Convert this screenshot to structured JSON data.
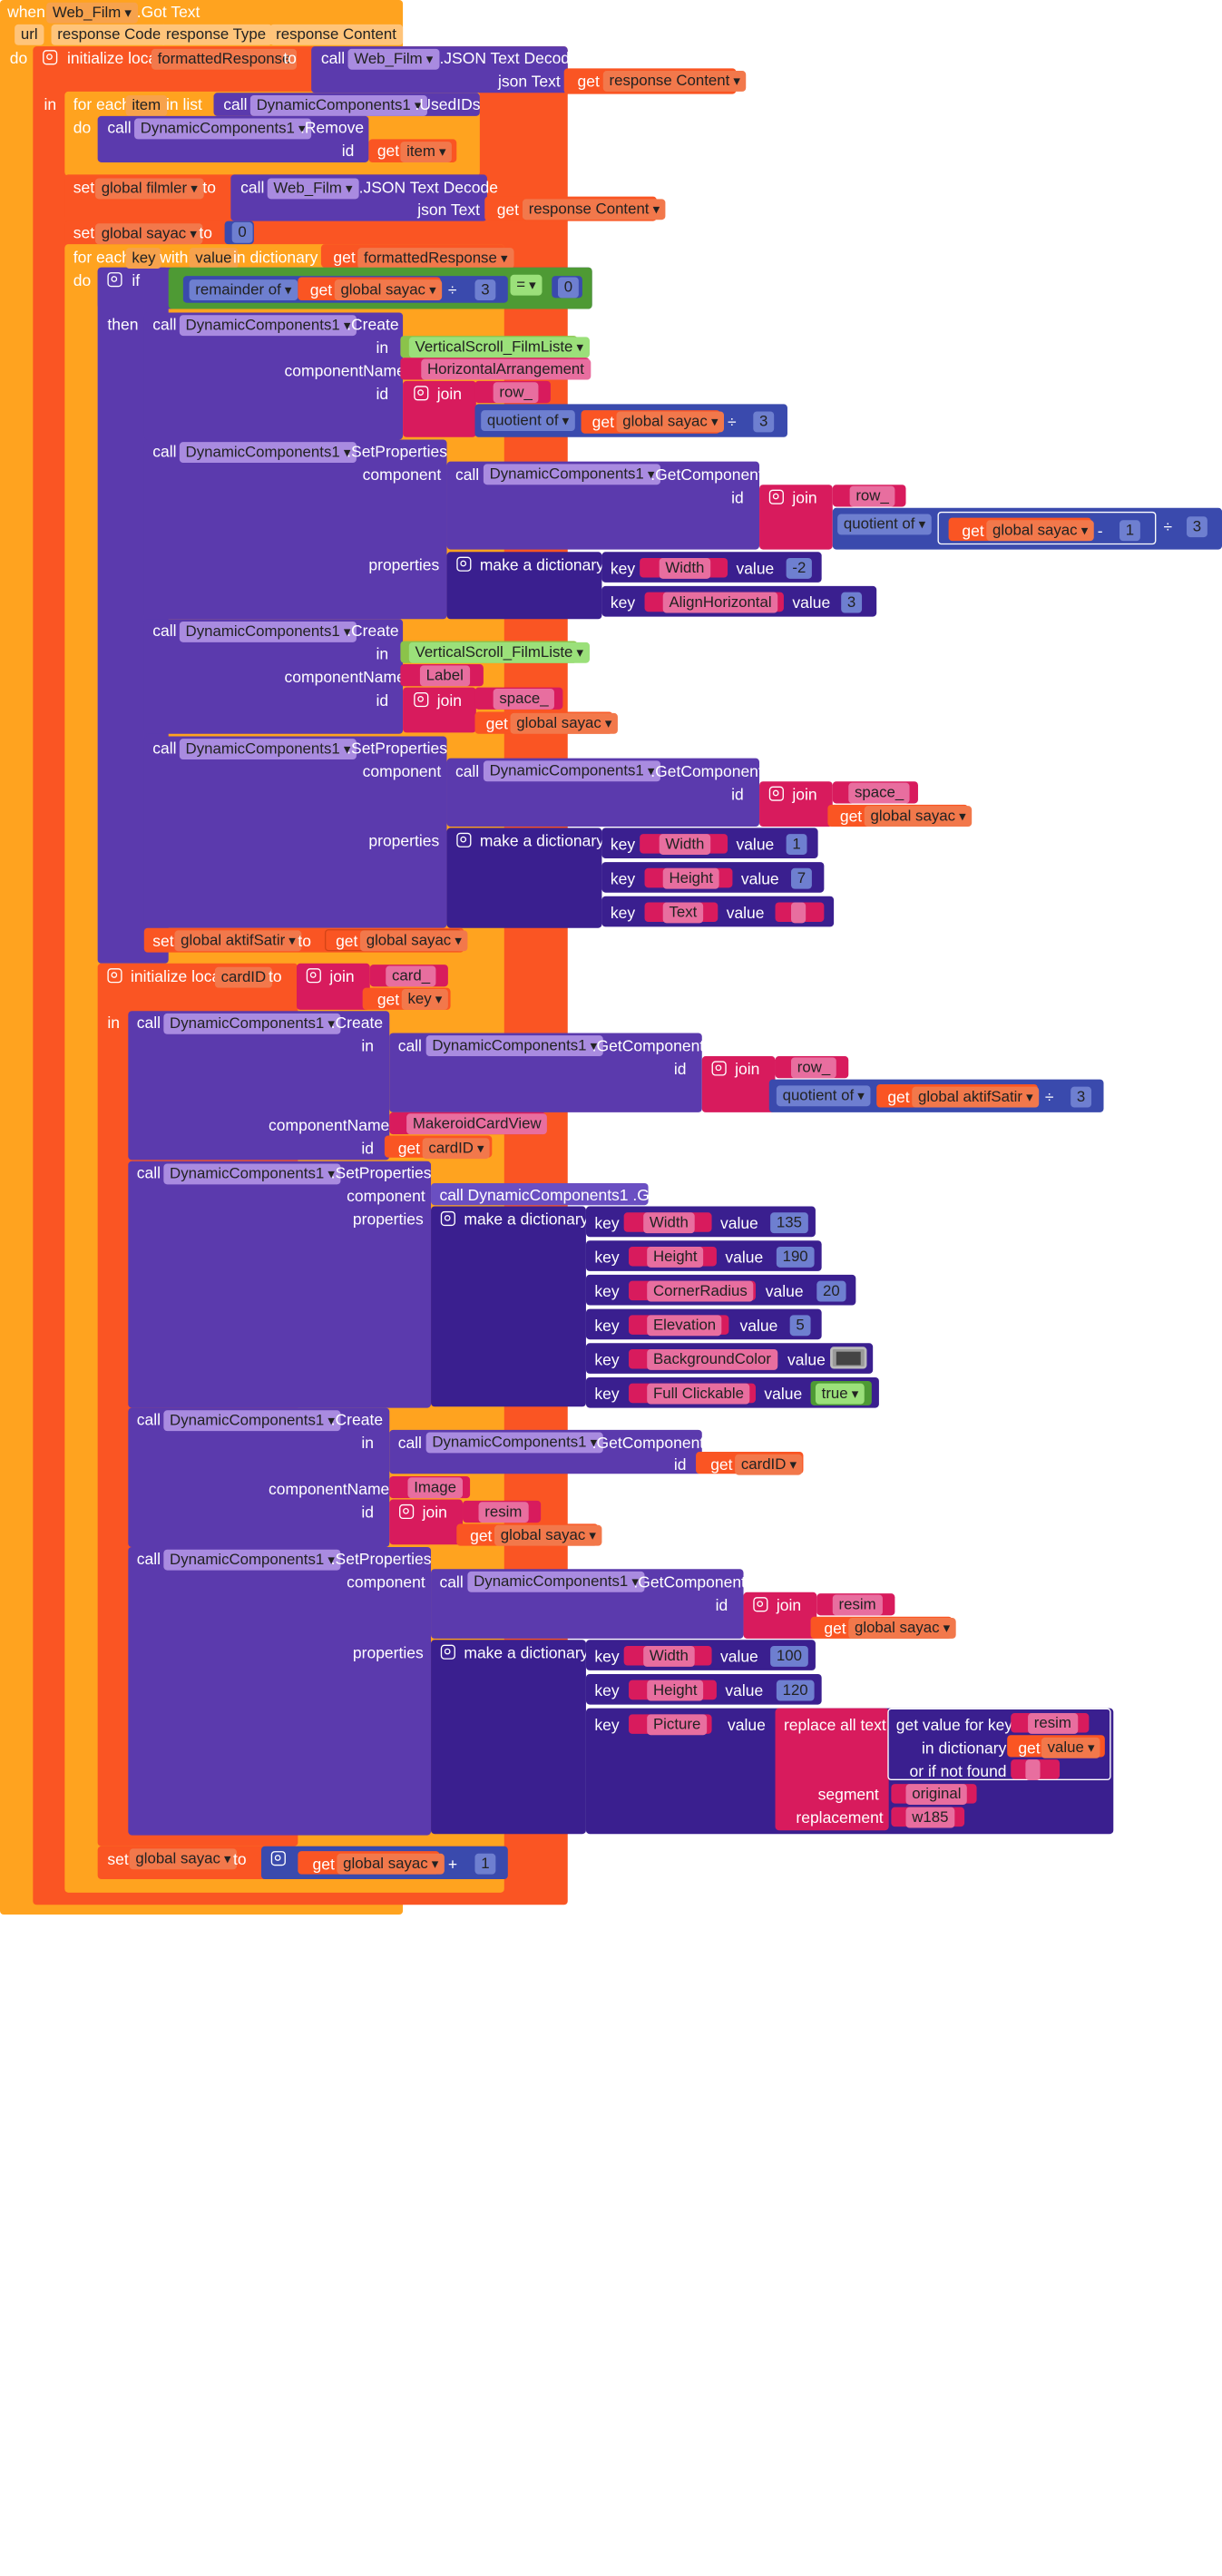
{
  "event": {
    "when": "when",
    "component": "Web_Film",
    "event": ".Got Text",
    "params": [
      "url",
      "response Code",
      "response Type",
      "response Content"
    ],
    "do": "do"
  },
  "kw": {
    "call": "call",
    "get": "get",
    "set": "set",
    "to": "to",
    "in": "in",
    "do": "do",
    "then": "then",
    "if": "if",
    "key": "key",
    "value": "value",
    "join": "join",
    "id": "id",
    "component": "component",
    "properties": "properties",
    "componentName": "componentName",
    "json_text": "json Text",
    "remainder_of": "remainder of",
    "quotient_of": "quotient of",
    "make_dict": "make a dictionary",
    "initialize_local": "initialize local",
    "for_each": "for each",
    "in_list": "in list",
    "with": "with",
    "in_dictionary": "in dictionary",
    "replace_all_text": "replace all text",
    "get_value_for_key": "get value for key",
    "or_if_not_found": "or if not found",
    "segment": "segment",
    "replacement": "replacement",
    "eq": "=",
    "div": "÷",
    "minus": "-",
    "plus": "+",
    "true": "true"
  },
  "components": {
    "web": "Web_Film",
    "dyn": "DynamicComponents1",
    "vscroll": "VerticalScroll_FilmListe"
  },
  "methods": {
    "json_decode": ".JSON Text Decode",
    "used_ids": ".UsedIDs",
    "remove": ".Remove",
    "create": ".Create",
    "set_props": ".SetProperties",
    "get_component": ".GetComponent",
    "get_component_collapsed": "call DynamicComponents1 .G..."
  },
  "vars": {
    "formattedResponse": "formattedResponse",
    "response_content": "response Content",
    "item": "item",
    "global_filmler": "global filmler",
    "global_sayac": "global sayac",
    "global_aktifSatir": "global aktifSatir",
    "key": "key",
    "value": "value",
    "cardID": "cardID"
  },
  "strings": {
    "horizontal": "HorizontalArrangement",
    "row": "row_",
    "width": "Width",
    "alignh": "AlignHorizontal",
    "label": "Label",
    "space": "space_",
    "height": "Height",
    "text": "Text",
    "card": "card_",
    "cardview": "MakeroidCardView",
    "corner": "CornerRadius",
    "elevation": "Elevation",
    "bgcolor": "BackgroundColor",
    "fullclick": "Full Clickable",
    "image": "Image",
    "resim": "resim",
    "picture": "Picture",
    "original": "original",
    "w185": "w185",
    "empty": ""
  },
  "numbers": {
    "n0": "0",
    "n3": "3",
    "n1": "1",
    "nm2": "-2",
    "n7": "7",
    "n135": "135",
    "n190": "190",
    "n20": "20",
    "n5": "5",
    "n100": "100",
    "n120": "120"
  },
  "colors": {
    "control": "#ffa31f",
    "procedure": "#fa5523",
    "component": "#5b3aad",
    "component_dark": "#3e2497",
    "logic": "#4e9a34",
    "text": "#d81b5d",
    "math": "#3a4aad",
    "dictionary": "#3a1f8f",
    "lists": "#6a3aa0",
    "vscroll_block": "#8bc34a",
    "swatch": "#444444"
  }
}
